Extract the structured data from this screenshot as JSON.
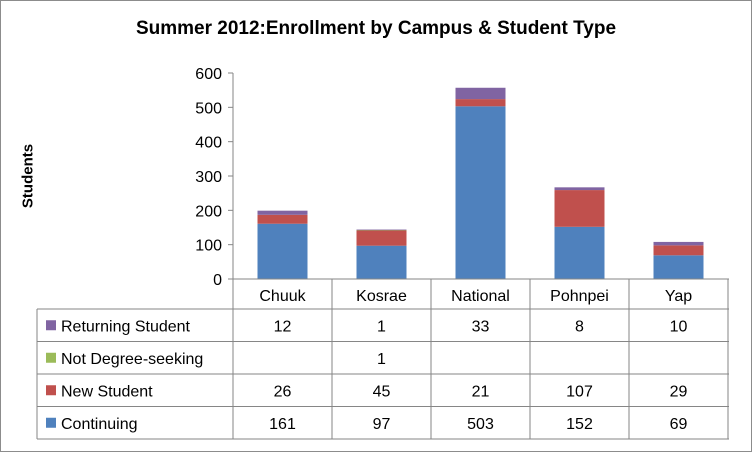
{
  "chart_data": {
    "type": "bar",
    "stacked": true,
    "title": "Summer 2012:Enrollment by Campus & Student Type",
    "xlabel": "",
    "ylabel": "Students",
    "ylim": [
      0,
      600
    ],
    "yticks": [
      0,
      100,
      200,
      300,
      400,
      500,
      600
    ],
    "grid": false,
    "legend": "data-table",
    "categories": [
      "Chuuk",
      "Kosrae",
      "National",
      "Pohnpei",
      "Yap"
    ],
    "series": [
      {
        "name": "Continuing",
        "color": "#4f81bd",
        "values": [
          161,
          97,
          503,
          152,
          69
        ]
      },
      {
        "name": "New Student",
        "color": "#c0504d",
        "values": [
          26,
          45,
          21,
          107,
          29
        ]
      },
      {
        "name": "Not Degree-seeking",
        "color": "#9bbb59",
        "values": [
          null,
          1,
          null,
          null,
          null
        ]
      },
      {
        "name": "Returning Student",
        "color": "#8064a2",
        "values": [
          12,
          1,
          33,
          8,
          10
        ]
      }
    ]
  }
}
